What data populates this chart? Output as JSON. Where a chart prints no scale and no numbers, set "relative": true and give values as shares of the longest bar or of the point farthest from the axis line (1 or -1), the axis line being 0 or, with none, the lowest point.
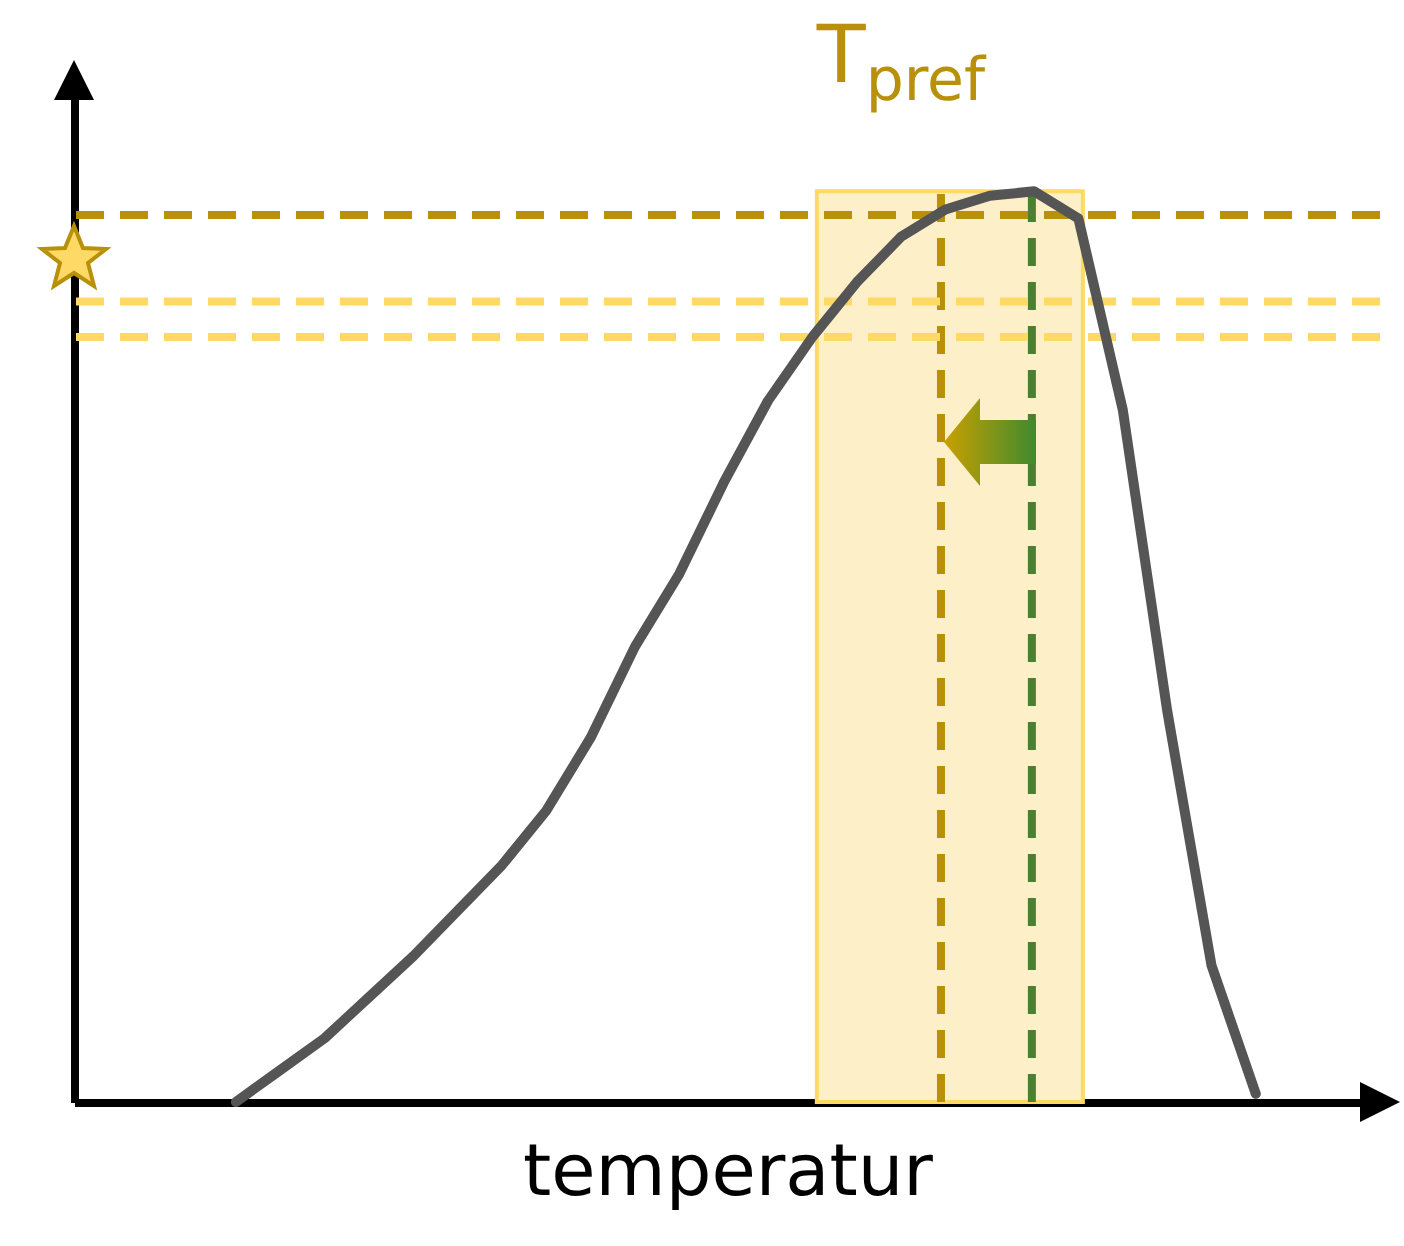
{
  "chart_data": {
    "type": "line",
    "relative": true,
    "xlabel": "temperatur",
    "categories": [
      null,
      null,
      null,
      null,
      null,
      null,
      null,
      null,
      null,
      null,
      null,
      null,
      null,
      null,
      null,
      null,
      null,
      null,
      null,
      null,
      null,
      null,
      null,
      null
    ],
    "series": [
      {
        "color": "#555555",
        "values": [
          0,
          0.035,
          0.07,
          0.115,
          0.16,
          0.21,
          0.26,
          0.32,
          0.4,
          0.5,
          0.58,
          0.68,
          0.77,
          0.84,
          0.9,
          0.95,
          0.98,
          0.995,
          1,
          0.97,
          0.76,
          0.43,
          0.15,
          0.009
        ]
      }
    ],
    "annotations": [
      "T$_{pref}$"
    ],
    "ref_lines": [
      {
        "axis": "y",
        "value": 0.974,
        "color": "#b8900a",
        "line_style": "dashed"
      },
      {
        "axis": "y",
        "value": 0.879,
        "color": "#ffd966",
        "line_style": "dashed"
      },
      {
        "axis": "y",
        "value": 0.84,
        "color": "#ffd966",
        "line_style": "dashed"
      }
    ]
  }
}
